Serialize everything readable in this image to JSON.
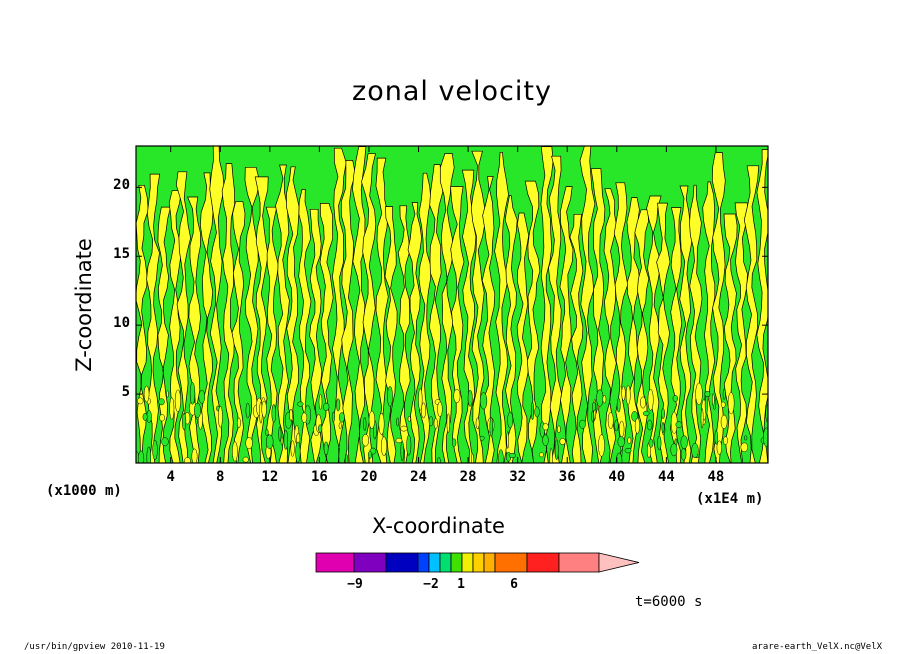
{
  "chart_data": {
    "type": "heatmap",
    "title": "zonal velocity",
    "xlabel": "X-coordinate",
    "ylabel": "Z-coordinate",
    "x_unit_label": "(x1000 m)",
    "x_scale_label": "(x1E4 m)",
    "x_ticks": [
      4,
      8,
      12,
      16,
      20,
      24,
      28,
      32,
      36,
      40,
      44,
      48
    ],
    "y_ticks": [
      5,
      10,
      15,
      20
    ],
    "xlim": [
      1.2,
      52.2
    ],
    "ylim": [
      0,
      23
    ],
    "time_label": "t=6000 s",
    "colorbar": {
      "labels": [
        {
          "value": -9,
          "text": "−9"
        },
        {
          "value": -2,
          "text": "−2"
        },
        {
          "value": 1,
          "text": "1"
        },
        {
          "value": 6,
          "text": "6"
        }
      ],
      "colors": [
        "#e000b0",
        "#8000c0",
        "#0000c0",
        "#0040ff",
        "#00c0ff",
        "#00e070",
        "#40e000",
        "#f0f000",
        "#ffd000",
        "#ffb000",
        "#ff7000",
        "#ff2020",
        "#ff8080",
        "#ffc0c0"
      ],
      "field_colors": {
        "negative": "#28e628",
        "positive": "#ffff28"
      }
    }
  },
  "footer": {
    "left": "/usr/bin/gpview   2010-11-19",
    "right": "arare-earth_VelX.nc@VelX"
  }
}
